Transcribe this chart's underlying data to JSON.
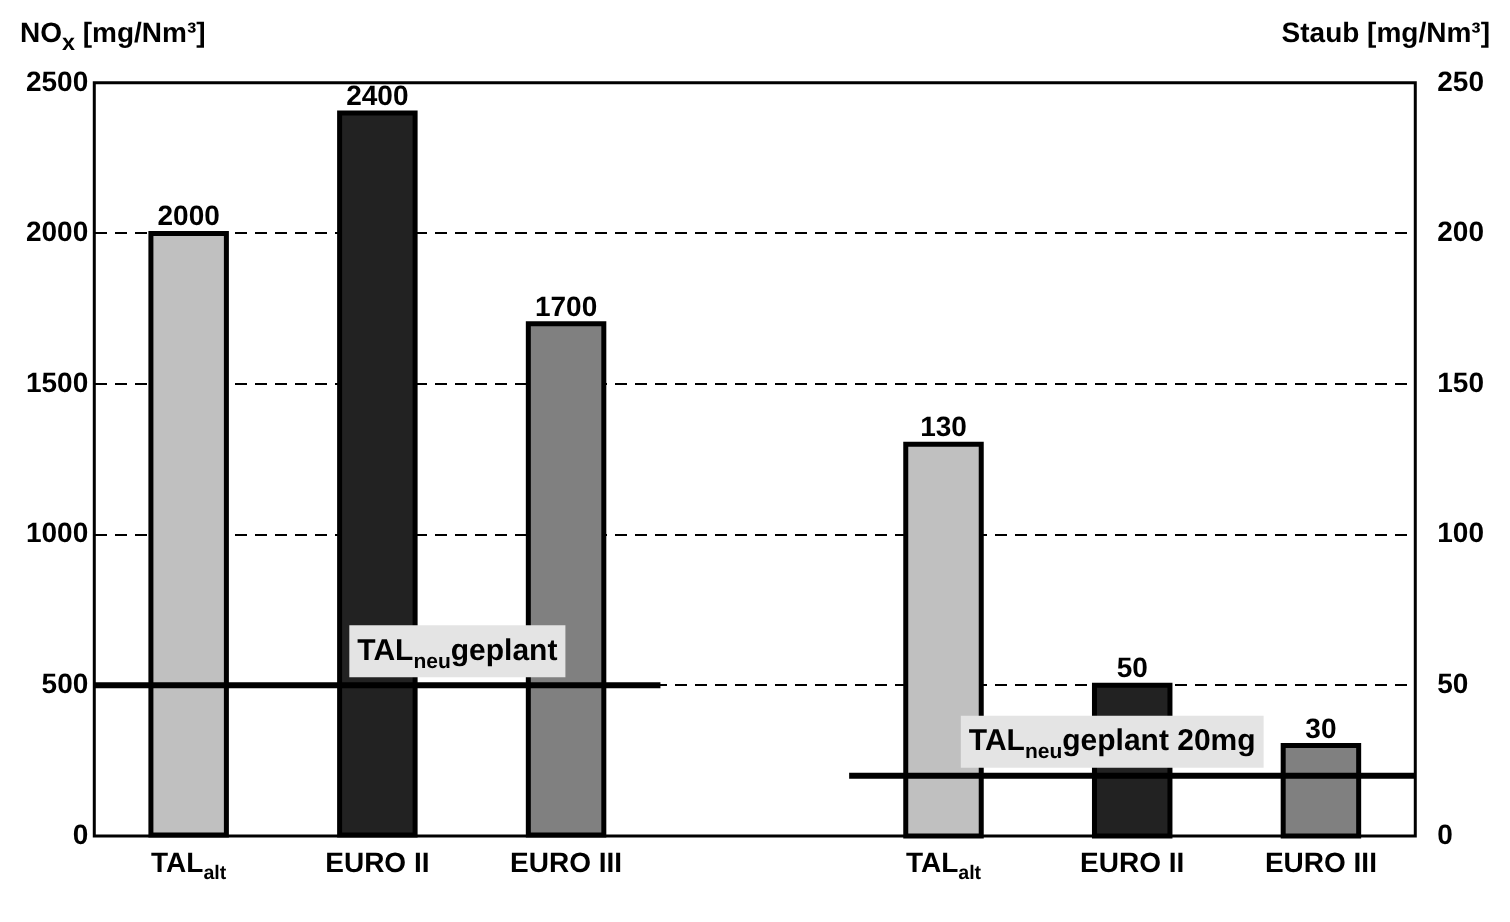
{
  "chart_data": {
    "type": "bar",
    "ylabel": "NO$_{x}$ [mg/Nm³]",
    "y2label": "Staub [mg/Nm³]",
    "categories": [
      "TAL$_{alt}$",
      "EURO II",
      "EURO III",
      null,
      "TAL$_{alt}$",
      "EURO II",
      "EURO III"
    ],
    "series": [
      {
        "colors": [
          "#c0c0c0",
          "#222222",
          "#808080",
          null,
          null,
          null,
          null
        ],
        "values": [
          2000,
          2400,
          1700,
          null,
          null,
          null,
          null
        ]
      },
      {
        "axis": "y2",
        "colors": [
          null,
          null,
          null,
          null,
          "#c0c0c0",
          "#222222",
          "#808080"
        ],
        "values": [
          null,
          null,
          null,
          null,
          130,
          50,
          30
        ]
      }
    ],
    "ylim": [
      0,
      2500
    ],
    "yticks": [
      0,
      500,
      1000,
      1500,
      2000,
      2500
    ],
    "y2lim": [
      0,
      250
    ],
    "y2ticks": [
      0,
      50,
      100,
      150,
      200,
      250
    ],
    "grid": "y",
    "legend": false,
    "data_labels": true,
    "ref_lines": [
      {
        "axis": "y",
        "value": 500,
        "label": "TAL$_{neu}$geplant"
      },
      {
        "axis": "y2",
        "value": 20,
        "label": "TAL$_{neu}$geplant 20mg"
      }
    ]
  }
}
